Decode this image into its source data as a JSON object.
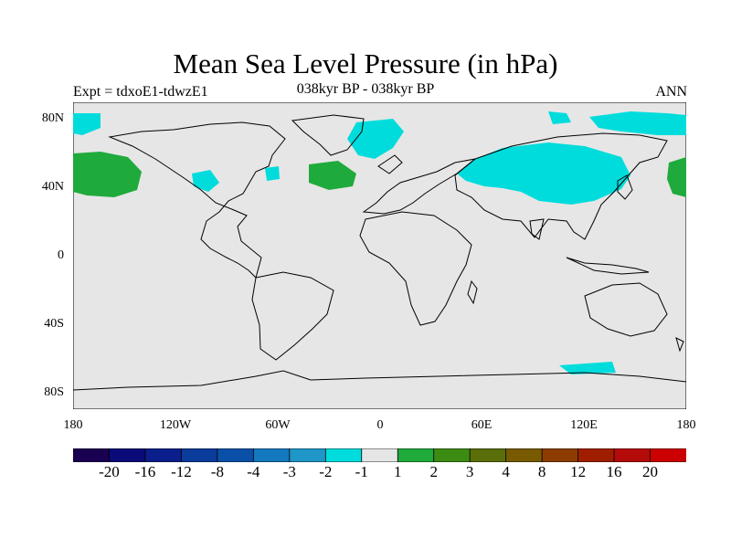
{
  "title": "Mean Sea Level Pressure (in hPa)",
  "experiment": "Expt = tdxoE1-tdwzE1",
  "period": "038kyr BP - 038kyr BP",
  "season": "ANN",
  "colors": {
    "ocean_land_bg": "#e6e6e6",
    "coast": "#000000",
    "neg_anomaly": "#00dcdc",
    "pos_anomaly": "#1faa3c"
  },
  "y_axis": {
    "ticks": [
      "80N",
      "40N",
      "0",
      "40S",
      "80S"
    ]
  },
  "x_axis": {
    "ticks": [
      "180",
      "120W",
      "60W",
      "0",
      "60E",
      "120E",
      "180"
    ]
  },
  "colorbar": {
    "labels": [
      "-20",
      "-16",
      "-12",
      "-8",
      "-4",
      "-3",
      "-2",
      "-1",
      "1",
      "2",
      "3",
      "4",
      "8",
      "12",
      "16",
      "20"
    ],
    "colors": [
      "#1a0050",
      "#0a0a78",
      "#0a1e8c",
      "#0a3c9b",
      "#0a50a8",
      "#1478be",
      "#1e96c8",
      "#00dcdc",
      "#e6e6e6",
      "#1faa3c",
      "#3c8c14",
      "#5a6e0a",
      "#785a00",
      "#8c3c00",
      "#a01e00",
      "#b40a0a",
      "#cc0000"
    ]
  }
}
